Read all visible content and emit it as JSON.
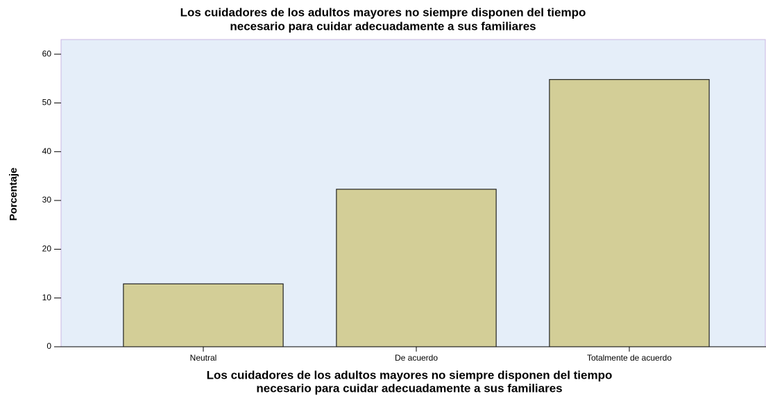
{
  "chart_data": {
    "type": "bar",
    "title": [
      "Los cuidadores de los adultos mayores no siempre disponen del tiempo",
      "necesario para cuidar adecuadamente a sus familiares"
    ],
    "xlabel": [
      "Los cuidadores de los adultos mayores no siempre disponen del tiempo",
      "necesario para cuidar adecuadamente a sus familiares"
    ],
    "ylabel": "Porcentaje",
    "categories": [
      "Neutral",
      "De acuerdo",
      "Totalmente de acuerdo"
    ],
    "values": [
      12.9,
      32.3,
      54.8
    ],
    "color": "#d3ce97",
    "ylim": [
      0,
      63
    ],
    "yticks": [
      0,
      10,
      20,
      30,
      40,
      50,
      60
    ],
    "grid": false
  }
}
